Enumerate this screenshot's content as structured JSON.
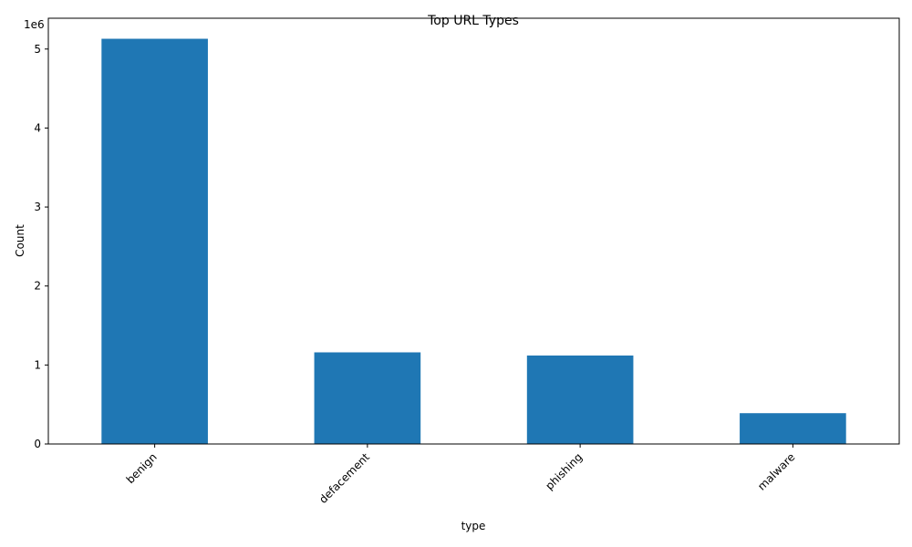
{
  "chart_data": {
    "type": "bar",
    "title": "Top URL Types",
    "xlabel": "type",
    "ylabel": "Count",
    "categories": [
      "benign",
      "defacement",
      "phishing",
      "malware"
    ],
    "values": [
      5130000,
      1160000,
      1120000,
      390000
    ],
    "ylim": [
      0,
      5390000
    ],
    "y_ticks": [
      0,
      1000000,
      2000000,
      3000000,
      4000000,
      5000000
    ],
    "y_tick_labels": [
      "0",
      "1",
      "2",
      "3",
      "4",
      "5"
    ],
    "y_offset_label": "1e6",
    "grid": false,
    "legend": "none",
    "bar_color": "#1f77b4"
  }
}
